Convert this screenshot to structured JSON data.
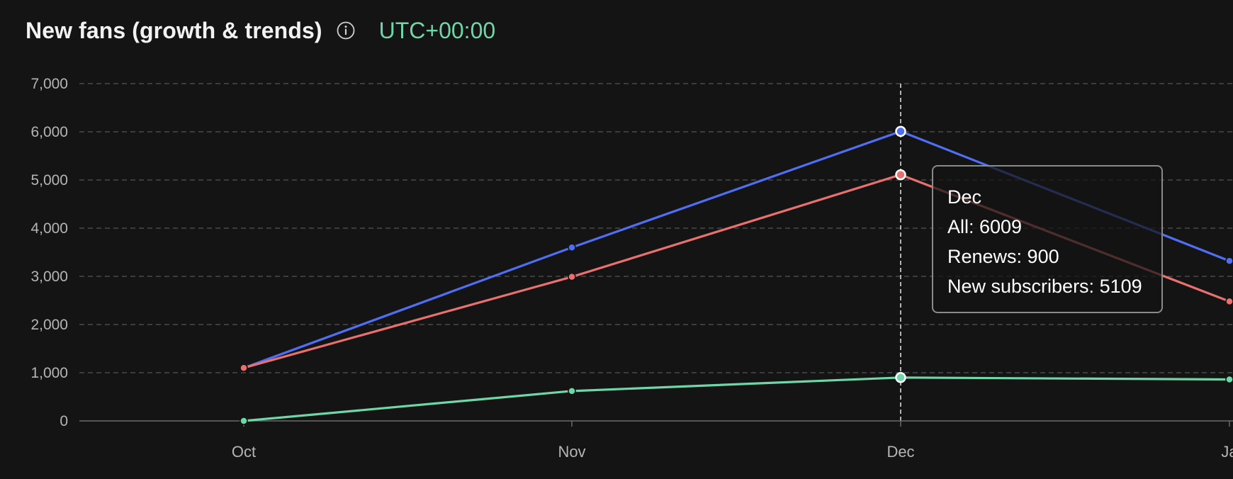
{
  "header": {
    "title": "New fans (growth & trends)",
    "info_icon": "info-circle-icon",
    "timezone": "UTC+00:00"
  },
  "colors": {
    "background": "#141414",
    "all": "#4f6ef2",
    "new_subscribers": "#e8706f",
    "renews": "#6fd6a8",
    "timezone": "#6fd6a8",
    "grid": "#555555"
  },
  "chart_data": {
    "type": "line",
    "categories": [
      "Oct",
      "Nov",
      "Dec",
      "Ja"
    ],
    "series": [
      {
        "name": "All",
        "key": "all",
        "values": [
          1100,
          3600,
          6009,
          3320
        ]
      },
      {
        "name": "New subscribers",
        "key": "new_subscribers",
        "values": [
          1100,
          2990,
          5109,
          2480
        ]
      },
      {
        "name": "Renews",
        "key": "renews",
        "values": [
          0,
          620,
          900,
          860
        ]
      }
    ],
    "yticks": [
      "0",
      "1,000",
      "2,000",
      "3,000",
      "4,000",
      "5,000",
      "6,000",
      "7,000"
    ],
    "ylim": [
      0,
      7000
    ],
    "grid": true,
    "hover_category": "Dec"
  },
  "tooltip": {
    "title": "Dec",
    "line_all": "All: 6009",
    "line_renews": "Renews: 900",
    "line_new": "New subscribers: 5109"
  }
}
